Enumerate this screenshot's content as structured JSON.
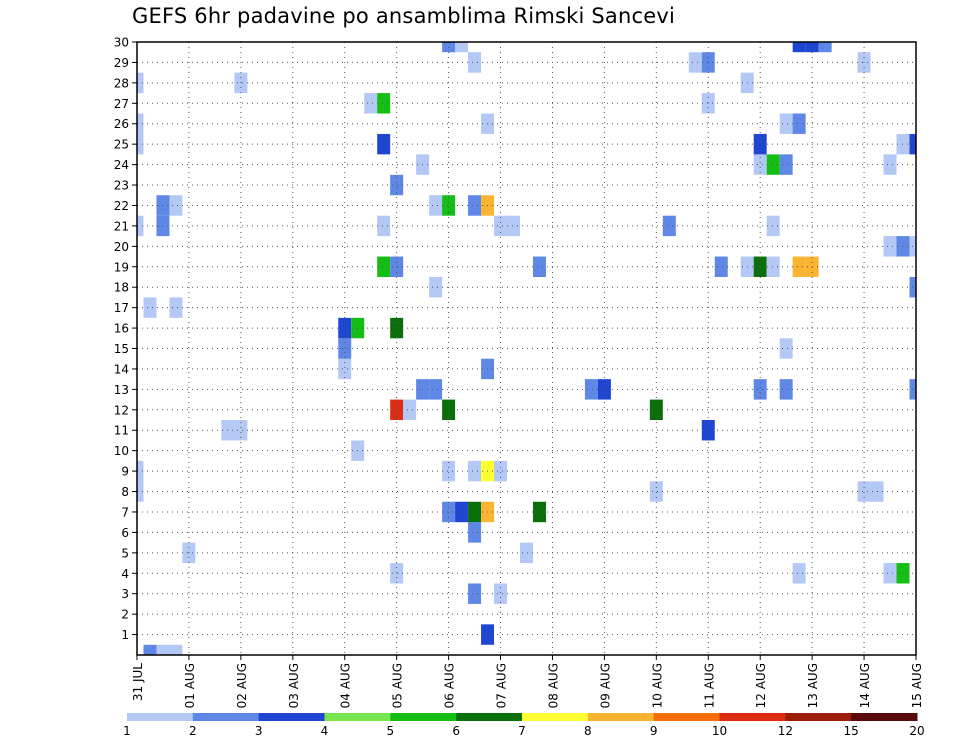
{
  "chart_data": {
    "type": "heatmap",
    "title": "GEFS 6hr padavine po ansamblima Rimski Sancevi",
    "x_tick_labels": [
      "31 JUL",
      "01 AUG",
      "02 AUG",
      "03 AUG",
      "04 AUG",
      "05 AUG",
      "06 AUG",
      "07 AUG",
      "08 AUG",
      "09 AUG",
      "10 AUG",
      "11 AUG",
      "12 AUG",
      "13 AUG",
      "14 AUG",
      "15 AUG"
    ],
    "x_range": [
      0,
      15
    ],
    "x_step_days": 0.25,
    "y_tick_labels": [
      "1",
      "2",
      "3",
      "4",
      "5",
      "6",
      "7",
      "8",
      "9",
      "10",
      "11",
      "12",
      "13",
      "14",
      "15",
      "16",
      "17",
      "18",
      "19",
      "20",
      "21",
      "22",
      "23",
      "24",
      "25",
      "26",
      "27",
      "28",
      "29",
      "30"
    ],
    "y_range": [
      0,
      30
    ],
    "grid": true,
    "colorbar": {
      "labels": [
        "1",
        "2",
        "3",
        "4",
        "5",
        "6",
        "7",
        "8",
        "9",
        "10",
        "12",
        "15",
        "20"
      ],
      "colors": [
        "#b4c8f5",
        "#5f87e6",
        "#1e46d2",
        "#78e650",
        "#14be14",
        "#0a6e0a",
        "#ffff32",
        "#fab432",
        "#f56e0a",
        "#dc2d14",
        "#9b1e0a",
        "#5a0a0a"
      ]
    },
    "cells": [
      {
        "t": 0.25,
        "member": 0,
        "v": 2
      },
      {
        "t": 0.5,
        "member": 0,
        "v": 1
      },
      {
        "t": 0.75,
        "member": 0,
        "v": 1
      },
      {
        "t": 6.75,
        "member": 1,
        "v": 3
      },
      {
        "t": 6.5,
        "member": 3,
        "v": 2
      },
      {
        "t": 7.0,
        "member": 3,
        "v": 1
      },
      {
        "t": 5.0,
        "member": 4,
        "v": 1
      },
      {
        "t": 12.75,
        "member": 4,
        "v": 1
      },
      {
        "t": 14.5,
        "member": 4,
        "v": 1
      },
      {
        "t": 14.75,
        "member": 4,
        "v": 5
      },
      {
        "t": 1.0,
        "member": 5,
        "v": 1
      },
      {
        "t": 7.5,
        "member": 5,
        "v": 1
      },
      {
        "t": 6.5,
        "member": 6,
        "v": 2
      },
      {
        "t": 6.0,
        "member": 7,
        "v": 2
      },
      {
        "t": 6.25,
        "member": 7,
        "v": 3
      },
      {
        "t": 6.5,
        "member": 7,
        "v": 6
      },
      {
        "t": 6.75,
        "member": 7,
        "v": 8
      },
      {
        "t": 7.75,
        "member": 7,
        "v": 6
      },
      {
        "t": 0.0,
        "member": 8,
        "v": 1
      },
      {
        "t": 10.0,
        "member": 8,
        "v": 1
      },
      {
        "t": 14.0,
        "member": 8,
        "v": 1
      },
      {
        "t": 14.25,
        "member": 8,
        "v": 1
      },
      {
        "t": 0.0,
        "member": 9,
        "v": 1
      },
      {
        "t": 6.0,
        "member": 9,
        "v": 1
      },
      {
        "t": 6.5,
        "member": 9,
        "v": 1
      },
      {
        "t": 6.75,
        "member": 9,
        "v": 7
      },
      {
        "t": 7.0,
        "member": 9,
        "v": 1
      },
      {
        "t": 4.25,
        "member": 10,
        "v": 1
      },
      {
        "t": 11.0,
        "member": 11,
        "v": 3
      },
      {
        "t": 1.75,
        "member": 11,
        "v": 1
      },
      {
        "t": 2.0,
        "member": 11,
        "v": 1
      },
      {
        "t": 5.0,
        "member": 12,
        "v": 10
      },
      {
        "t": 5.25,
        "member": 12,
        "v": 1
      },
      {
        "t": 6.0,
        "member": 12,
        "v": 6
      },
      {
        "t": 10.0,
        "member": 12,
        "v": 6
      },
      {
        "t": 5.5,
        "member": 13,
        "v": 2
      },
      {
        "t": 5.75,
        "member": 13,
        "v": 2
      },
      {
        "t": 8.75,
        "member": 13,
        "v": 2
      },
      {
        "t": 9.0,
        "member": 13,
        "v": 3
      },
      {
        "t": 12.0,
        "member": 13,
        "v": 2
      },
      {
        "t": 12.5,
        "member": 13,
        "v": 2
      },
      {
        "t": 15.0,
        "member": 13,
        "v": 2
      },
      {
        "t": 4.0,
        "member": 14,
        "v": 1
      },
      {
        "t": 6.75,
        "member": 14,
        "v": 2
      },
      {
        "t": 4.0,
        "member": 15,
        "v": 2
      },
      {
        "t": 12.5,
        "member": 15,
        "v": 1
      },
      {
        "t": 4.0,
        "member": 16,
        "v": 3
      },
      {
        "t": 4.25,
        "member": 16,
        "v": 5
      },
      {
        "t": 5.0,
        "member": 16,
        "v": 6
      },
      {
        "t": 0.25,
        "member": 17,
        "v": 1
      },
      {
        "t": 0.75,
        "member": 17,
        "v": 1
      },
      {
        "t": 5.75,
        "member": 18,
        "v": 1
      },
      {
        "t": 15.0,
        "member": 18,
        "v": 2
      },
      {
        "t": 4.75,
        "member": 19,
        "v": 5
      },
      {
        "t": 5.0,
        "member": 19,
        "v": 2
      },
      {
        "t": 7.75,
        "member": 19,
        "v": 2
      },
      {
        "t": 11.25,
        "member": 19,
        "v": 2
      },
      {
        "t": 11.75,
        "member": 19,
        "v": 1
      },
      {
        "t": 12.0,
        "member": 19,
        "v": 6
      },
      {
        "t": 12.25,
        "member": 19,
        "v": 1
      },
      {
        "t": 12.75,
        "member": 19,
        "v": 8
      },
      {
        "t": 13.0,
        "member": 19,
        "v": 8
      },
      {
        "t": 14.5,
        "member": 20,
        "v": 1
      },
      {
        "t": 14.75,
        "member": 20,
        "v": 2
      },
      {
        "t": 15.0,
        "member": 20,
        "v": 1
      },
      {
        "t": 0.0,
        "member": 21,
        "v": 1
      },
      {
        "t": 0.5,
        "member": 21,
        "v": 2
      },
      {
        "t": 4.75,
        "member": 21,
        "v": 1
      },
      {
        "t": 7.0,
        "member": 21,
        "v": 1
      },
      {
        "t": 7.25,
        "member": 21,
        "v": 1
      },
      {
        "t": 10.25,
        "member": 21,
        "v": 2
      },
      {
        "t": 12.25,
        "member": 21,
        "v": 1
      },
      {
        "t": 0.5,
        "member": 22,
        "v": 2
      },
      {
        "t": 0.75,
        "member": 22,
        "v": 1
      },
      {
        "t": 5.75,
        "member": 22,
        "v": 1
      },
      {
        "t": 6.0,
        "member": 22,
        "v": 5
      },
      {
        "t": 6.5,
        "member": 22,
        "v": 2
      },
      {
        "t": 6.75,
        "member": 22,
        "v": 8
      },
      {
        "t": 5.0,
        "member": 23,
        "v": 2
      },
      {
        "t": 5.5,
        "member": 24,
        "v": 1
      },
      {
        "t": 12.0,
        "member": 24,
        "v": 1
      },
      {
        "t": 12.25,
        "member": 24,
        "v": 5
      },
      {
        "t": 12.5,
        "member": 24,
        "v": 2
      },
      {
        "t": 14.5,
        "member": 24,
        "v": 1
      },
      {
        "t": 0.0,
        "member": 25,
        "v": 1
      },
      {
        "t": 4.75,
        "member": 25,
        "v": 3
      },
      {
        "t": 12.0,
        "member": 25,
        "v": 3
      },
      {
        "t": 14.75,
        "member": 25,
        "v": 1
      },
      {
        "t": 15.0,
        "member": 25,
        "v": 3
      },
      {
        "t": 0.0,
        "member": 26,
        "v": 1
      },
      {
        "t": 6.75,
        "member": 26,
        "v": 1
      },
      {
        "t": 12.5,
        "member": 26,
        "v": 1
      },
      {
        "t": 12.75,
        "member": 26,
        "v": 2
      },
      {
        "t": 4.5,
        "member": 27,
        "v": 1
      },
      {
        "t": 4.75,
        "member": 27,
        "v": 5
      },
      {
        "t": 11.0,
        "member": 27,
        "v": 1
      },
      {
        "t": 0.0,
        "member": 28,
        "v": 1
      },
      {
        "t": 2.0,
        "member": 28,
        "v": 1
      },
      {
        "t": 11.75,
        "member": 28,
        "v": 1
      },
      {
        "t": 6.5,
        "member": 29,
        "v": 1
      },
      {
        "t": 10.75,
        "member": 29,
        "v": 1
      },
      {
        "t": 11.0,
        "member": 29,
        "v": 2
      },
      {
        "t": 14.0,
        "member": 29,
        "v": 1
      },
      {
        "t": 6.0,
        "member": 30,
        "v": 2
      },
      {
        "t": 6.25,
        "member": 30,
        "v": 1
      },
      {
        "t": 12.75,
        "member": 30,
        "v": 3
      },
      {
        "t": 13.0,
        "member": 30,
        "v": 3
      },
      {
        "t": 13.25,
        "member": 30,
        "v": 2
      }
    ]
  }
}
